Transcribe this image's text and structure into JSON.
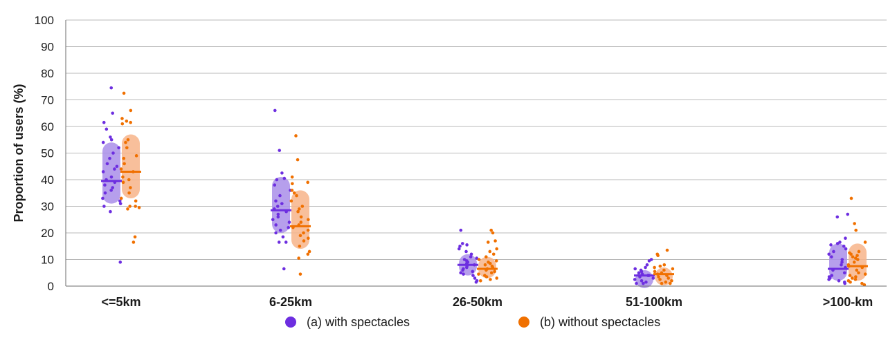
{
  "chart_data": {
    "type": "scatter",
    "title": "",
    "ylabel": "Proportion of users (%)",
    "ylim": [
      0,
      100
    ],
    "yticks": [
      0,
      10,
      20,
      30,
      40,
      50,
      60,
      70,
      80,
      90,
      100
    ],
    "grid": true,
    "legend_position": "bottom-center",
    "categories": [
      "<=5km",
      "6-25km",
      "26-50km",
      "51-100km",
      ">100-km"
    ],
    "series": [
      {
        "name": "(a) with spectacles",
        "color": "#6d2ee0",
        "band_color": "#a98ee9",
        "median": [
          39.5,
          28.5,
          8.0,
          4.0,
          6.5
        ],
        "range": [
          [
            31,
            54
          ],
          [
            20,
            41
          ],
          [
            4,
            12
          ],
          [
            2,
            6
          ],
          [
            2,
            16
          ]
        ],
        "points": [
          [
            74.5,
            65,
            61.5,
            59,
            56,
            55,
            54,
            52,
            50,
            48,
            46,
            45,
            44,
            43,
            41,
            40,
            39,
            38,
            37,
            36,
            35,
            33,
            32,
            31,
            30,
            28,
            9
          ],
          [
            66,
            51,
            42.5,
            40.5,
            40,
            38,
            36,
            34,
            32,
            31,
            30,
            29,
            28,
            27,
            26,
            25,
            24,
            23,
            22,
            21,
            20,
            18.5,
            16.5,
            16.5,
            6.5
          ],
          [
            21,
            16,
            15.5,
            15,
            14,
            13,
            12,
            11,
            10.5,
            10,
            9.5,
            9,
            8.5,
            8,
            7.5,
            7,
            6.5,
            6,
            5.5,
            5,
            4.5,
            4,
            3,
            2,
            1.5
          ],
          [
            10,
            9.5,
            8,
            7,
            6.5,
            6,
            5.5,
            5,
            4.5,
            4,
            4,
            3.5,
            3,
            2.5,
            2,
            1.5,
            1,
            1
          ],
          [
            27,
            26,
            18,
            16.5,
            16,
            15.5,
            15,
            14,
            13,
            12,
            11,
            10,
            9,
            8,
            7,
            6,
            5,
            4,
            3.5,
            3,
            2.5,
            2,
            1.5,
            1
          ]
        ]
      },
      {
        "name": "(b) without spectacles",
        "color": "#f07000",
        "band_color": "#f7b48a",
        "median": [
          43.0,
          22.5,
          6.5,
          4.5,
          7.5
        ],
        "range": [
          [
            33,
            57
          ],
          [
            14,
            36
          ],
          [
            3,
            11
          ],
          [
            2,
            7
          ],
          [
            2,
            16
          ]
        ],
        "points": [
          [
            72.5,
            66,
            63,
            62,
            61.5,
            61,
            55,
            54,
            52,
            49,
            48,
            46,
            44,
            43,
            41,
            40,
            39,
            37,
            35,
            33,
            32,
            30,
            30,
            29,
            29.5,
            18.5,
            16.5
          ],
          [
            56.5,
            47.5,
            41,
            39,
            38.5,
            36,
            35,
            34,
            32,
            30,
            29,
            28,
            26,
            25,
            24,
            23,
            22,
            21,
            20,
            19,
            18,
            17,
            15,
            13,
            12,
            10.5,
            4.5
          ],
          [
            21,
            20,
            17,
            16.5,
            14,
            13,
            12,
            11,
            10,
            9.5,
            9,
            8.5,
            8,
            7.5,
            7,
            6.5,
            6,
            5.5,
            5,
            4.5,
            4,
            3.5,
            3,
            2.5,
            2
          ],
          [
            13.5,
            12,
            11.5,
            8,
            7.5,
            7,
            6.5,
            6,
            5.5,
            5,
            4.5,
            4,
            3.5,
            3,
            2.5,
            2,
            1.5,
            1,
            1
          ],
          [
            33,
            23.5,
            21,
            16.5,
            13,
            12.5,
            12,
            11.5,
            11,
            10.5,
            10,
            9,
            8,
            7.5,
            7,
            6,
            5,
            4.5,
            4,
            3.5,
            3,
            2.5,
            2,
            1.5,
            1,
            0.5
          ]
        ]
      }
    ]
  }
}
